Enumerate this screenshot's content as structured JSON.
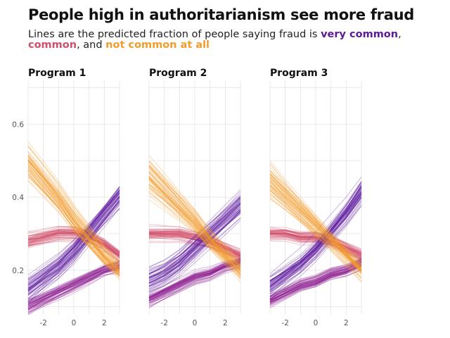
{
  "title": "People high in authoritarianism see more fraud",
  "subtitle": {
    "prefix": "Lines are the predicted fraction of people saying fraud is ",
    "very_common": "very common",
    "sep1": ", ",
    "common": "common",
    "sep2": ", and ",
    "not_common": "not common at all"
  },
  "colors": {
    "very_common": "#5c1a9e",
    "not_common": "#f39c2d",
    "common": "#d04f6a",
    "purple_magenta": "#8e2293",
    "grid": "#e3e3e3"
  },
  "chart_data": {
    "type": "line",
    "facets": [
      "Program 1",
      "Program 2",
      "Program 3"
    ],
    "x": [
      -3,
      -2,
      -1,
      0,
      1,
      2,
      3
    ],
    "x_ticks": [
      -2,
      0,
      2
    ],
    "y_ticks": [
      0.2,
      0.4,
      0.6
    ],
    "xlim": [
      -3,
      3
    ],
    "ylim": [
      0.08,
      0.72
    ],
    "series": [
      {
        "key": "very_common",
        "color": "#5c1a9e",
        "median_by_facet": [
          [
            0.15,
            0.18,
            0.21,
            0.25,
            0.3,
            0.35,
            0.4
          ],
          [
            0.17,
            0.19,
            0.22,
            0.26,
            0.3,
            0.34,
            0.38
          ],
          [
            0.16,
            0.19,
            0.22,
            0.26,
            0.31,
            0.36,
            0.42
          ]
        ]
      },
      {
        "key": "not_common",
        "color": "#f39c2d",
        "median_by_facet": [
          [
            0.5,
            0.45,
            0.4,
            0.34,
            0.29,
            0.24,
            0.2
          ],
          [
            0.45,
            0.41,
            0.37,
            0.33,
            0.28,
            0.24,
            0.2
          ],
          [
            0.44,
            0.4,
            0.36,
            0.32,
            0.28,
            0.24,
            0.2
          ]
        ]
      },
      {
        "key": "common",
        "color": "#d04f6a",
        "median_by_facet": [
          [
            0.28,
            0.29,
            0.3,
            0.3,
            0.29,
            0.27,
            0.24
          ],
          [
            0.3,
            0.3,
            0.3,
            0.29,
            0.28,
            0.26,
            0.24
          ],
          [
            0.3,
            0.3,
            0.29,
            0.29,
            0.28,
            0.26,
            0.24
          ]
        ]
      },
      {
        "key": "purple_magenta",
        "color": "#8e2293",
        "median_by_facet": [
          [
            0.1,
            0.12,
            0.14,
            0.16,
            0.18,
            0.2,
            0.21
          ],
          [
            0.12,
            0.14,
            0.16,
            0.18,
            0.19,
            0.21,
            0.22
          ],
          [
            0.12,
            0.14,
            0.16,
            0.17,
            0.19,
            0.2,
            0.22
          ]
        ]
      }
    ]
  }
}
